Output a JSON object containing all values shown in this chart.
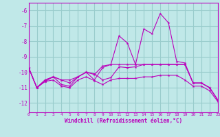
{
  "xlabel": "Windchill (Refroidissement éolien,°C)",
  "bg_color": "#c0e8e8",
  "grid_color": "#99cccc",
  "line_color": "#bb00bb",
  "xmin": 0,
  "xmax": 23,
  "ymin": -12.6,
  "ymax": -5.5,
  "yticks": [
    -12,
    -11,
    -10,
    -9,
    -8,
    -7,
    -6
  ],
  "series": [
    {
      "x": [
        0,
        1,
        2,
        3,
        4,
        5,
        6,
        7,
        8,
        9,
        10,
        11,
        12,
        13,
        14,
        15,
        16,
        17,
        18,
        19,
        20,
        21,
        22,
        23
      ],
      "y": [
        -9.7,
        -11.0,
        -10.6,
        -10.5,
        -10.9,
        -11.0,
        -10.5,
        -10.3,
        -10.55,
        -10.8,
        -10.5,
        -10.4,
        -10.4,
        -10.4,
        -10.3,
        -10.3,
        -10.2,
        -10.2,
        -10.2,
        -10.5,
        -10.9,
        -10.9,
        -11.2,
        -11.9
      ]
    },
    {
      "x": [
        0,
        1,
        2,
        3,
        4,
        5,
        6,
        7,
        8,
        9,
        10,
        11,
        12,
        13,
        14,
        15,
        16,
        17,
        18,
        19,
        20,
        21,
        22,
        23
      ],
      "y": [
        -9.7,
        -11.0,
        -10.5,
        -10.3,
        -10.5,
        -10.5,
        -10.3,
        -10.0,
        -10.15,
        -9.6,
        -9.5,
        -9.5,
        -9.5,
        -9.5,
        -9.5,
        -9.5,
        -9.5,
        -9.5,
        -9.5,
        -9.5,
        -10.7,
        -10.7,
        -11.0,
        -11.8
      ]
    },
    {
      "x": [
        0,
        1,
        2,
        3,
        4,
        5,
        6,
        7,
        8,
        9,
        10,
        11,
        12,
        13,
        14,
        15,
        16,
        17,
        18,
        19,
        20,
        21,
        22,
        23
      ],
      "y": [
        -9.7,
        -11.0,
        -10.5,
        -10.3,
        -10.5,
        -10.7,
        -10.3,
        -10.0,
        -10.1,
        -10.5,
        -10.35,
        -9.65,
        -9.7,
        -9.65,
        -9.5,
        -9.5,
        -9.5,
        -9.5,
        -9.5,
        -9.5,
        -10.7,
        -10.7,
        -11.0,
        -11.8
      ]
    },
    {
      "x": [
        0,
        1,
        2,
        3,
        4,
        5,
        6,
        7,
        8,
        9,
        10,
        11,
        12,
        13,
        14,
        15,
        16,
        17,
        18,
        19,
        20,
        21,
        22,
        23
      ],
      "y": [
        -9.7,
        -11.0,
        -10.6,
        -10.3,
        -10.8,
        -10.9,
        -10.3,
        -10.0,
        -10.5,
        -9.7,
        -9.5,
        -7.65,
        -8.1,
        -9.5,
        -7.2,
        -7.5,
        -6.2,
        -6.8,
        -9.3,
        -9.4,
        -10.7,
        -10.7,
        -11.0,
        -11.8
      ]
    }
  ]
}
